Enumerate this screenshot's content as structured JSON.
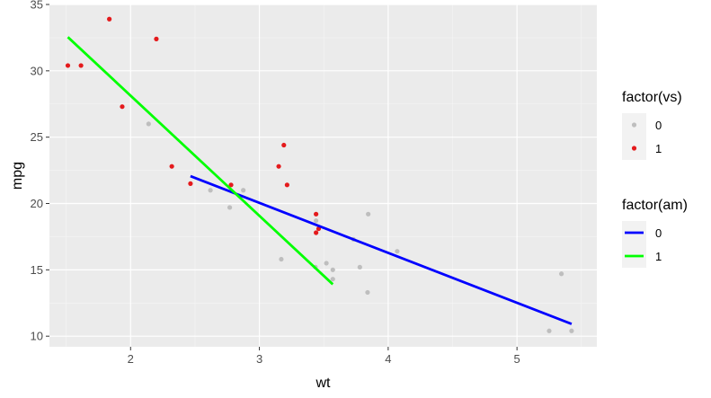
{
  "chart_data": {
    "type": "scatter",
    "xlabel": "wt",
    "ylabel": "mpg",
    "xlim": [
      1.37,
      5.62
    ],
    "ylim": [
      9.2,
      35.0
    ],
    "x_ticks": [
      2,
      3,
      4,
      5
    ],
    "y_ticks": [
      10,
      15,
      20,
      25,
      30,
      35
    ],
    "grid": true,
    "points": [
      {
        "wt": 2.62,
        "mpg": 21.0,
        "vs": "0"
      },
      {
        "wt": 2.875,
        "mpg": 21.0,
        "vs": "0"
      },
      {
        "wt": 2.32,
        "mpg": 22.8,
        "vs": "1"
      },
      {
        "wt": 3.215,
        "mpg": 21.4,
        "vs": "1"
      },
      {
        "wt": 3.44,
        "mpg": 18.7,
        "vs": "0"
      },
      {
        "wt": 3.46,
        "mpg": 18.1,
        "vs": "1"
      },
      {
        "wt": 3.57,
        "mpg": 14.3,
        "vs": "0"
      },
      {
        "wt": 3.19,
        "mpg": 24.4,
        "vs": "1"
      },
      {
        "wt": 3.15,
        "mpg": 22.8,
        "vs": "1"
      },
      {
        "wt": 3.44,
        "mpg": 19.2,
        "vs": "1"
      },
      {
        "wt": 3.44,
        "mpg": 17.8,
        "vs": "1"
      },
      {
        "wt": 4.07,
        "mpg": 16.4,
        "vs": "0"
      },
      {
        "wt": 3.73,
        "mpg": 17.3,
        "vs": "0"
      },
      {
        "wt": 3.78,
        "mpg": 15.2,
        "vs": "0"
      },
      {
        "wt": 5.25,
        "mpg": 10.4,
        "vs": "0"
      },
      {
        "wt": 5.424,
        "mpg": 10.4,
        "vs": "0"
      },
      {
        "wt": 5.345,
        "mpg": 14.7,
        "vs": "0"
      },
      {
        "wt": 2.2,
        "mpg": 32.4,
        "vs": "1"
      },
      {
        "wt": 1.615,
        "mpg": 30.4,
        "vs": "1"
      },
      {
        "wt": 1.835,
        "mpg": 33.9,
        "vs": "1"
      },
      {
        "wt": 2.465,
        "mpg": 21.5,
        "vs": "1"
      },
      {
        "wt": 3.52,
        "mpg": 15.5,
        "vs": "0"
      },
      {
        "wt": 3.435,
        "mpg": 15.2,
        "vs": "0"
      },
      {
        "wt": 3.84,
        "mpg": 13.3,
        "vs": "0"
      },
      {
        "wt": 3.845,
        "mpg": 19.2,
        "vs": "0"
      },
      {
        "wt": 1.935,
        "mpg": 27.3,
        "vs": "1"
      },
      {
        "wt": 2.14,
        "mpg": 26.0,
        "vs": "0"
      },
      {
        "wt": 1.513,
        "mpg": 30.4,
        "vs": "1"
      },
      {
        "wt": 3.17,
        "mpg": 15.8,
        "vs": "0"
      },
      {
        "wt": 2.77,
        "mpg": 19.7,
        "vs": "0"
      },
      {
        "wt": 3.57,
        "mpg": 15.0,
        "vs": "0"
      },
      {
        "wt": 2.78,
        "mpg": 21.4,
        "vs": "1"
      }
    ],
    "lines": [
      {
        "am": "0",
        "x": [
          2.465,
          5.424
        ],
        "y": [
          22.06,
          10.92
        ]
      },
      {
        "am": "1",
        "x": [
          1.513,
          3.57
        ],
        "y": [
          32.54,
          13.91
        ]
      }
    ],
    "legends": [
      {
        "title": "factor(vs)",
        "kind": "point",
        "position": "right",
        "entries": [
          {
            "label": "0",
            "color": "#bebebe"
          },
          {
            "label": "1",
            "color": "#e41a1c"
          }
        ]
      },
      {
        "title": "factor(am)",
        "kind": "line",
        "position": "right",
        "entries": [
          {
            "label": "0",
            "color": "#0000ff"
          },
          {
            "label": "1",
            "color": "#00ff00"
          }
        ]
      }
    ]
  },
  "colors": {
    "panel_background": "#ebebeb",
    "grid_major": "#ffffff",
    "vs_0": "#bebebe",
    "vs_1": "#e41a1c",
    "am_0": "#0000ff",
    "am_1": "#00ff00"
  }
}
